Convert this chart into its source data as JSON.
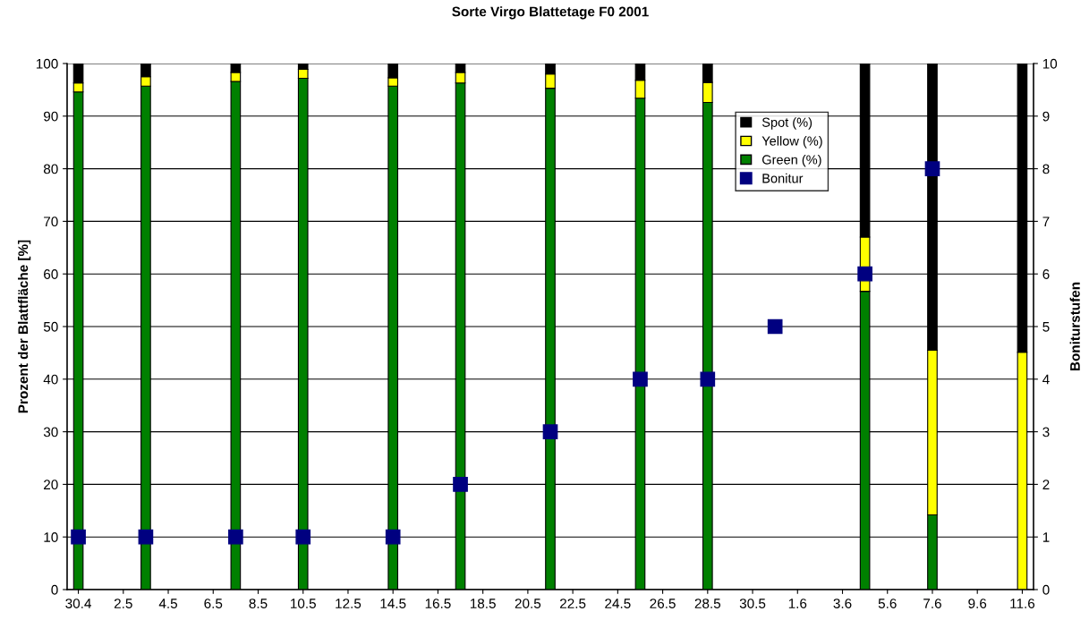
{
  "chart_data": {
    "type": "bar",
    "title": "Sorte Virgo Blattetage F0 2001",
    "ylabel": "Prozent der Blattfläche [%]",
    "y2label": "Boniturstufen",
    "categories": [
      "30.4",
      null,
      "2.5",
      null,
      "4.5",
      null,
      "6.5",
      null,
      "8.5",
      null,
      "10.5",
      null,
      "12.5",
      null,
      "14.5",
      null,
      "16.5",
      null,
      "18.5",
      null,
      "20.5",
      null,
      "22.5",
      null,
      "24.5",
      null,
      "26.5",
      null,
      "28.5",
      null,
      "30.5",
      null,
      "1.6",
      null,
      "3.6",
      null,
      "5.6",
      null,
      "7.6",
      null,
      "9.6",
      null,
      "11.6"
    ],
    "stacked": true,
    "series": [
      {
        "name": "Green (%)",
        "color": "#008000",
        "values": [
          94.6,
          null,
          null,
          95.7,
          null,
          null,
          null,
          96.6,
          null,
          null,
          97.2,
          null,
          null,
          null,
          95.7,
          null,
          null,
          96.3,
          null,
          null,
          null,
          95.3,
          null,
          null,
          null,
          93.4,
          null,
          null,
          92.6,
          null,
          null,
          null,
          null,
          null,
          null,
          56.7,
          null,
          null,
          14.2,
          null,
          null,
          null,
          null
        ]
      },
      {
        "name": "Yellow (%)",
        "color": "#ffff00",
        "values": [
          1.7,
          null,
          null,
          1.8,
          null,
          null,
          null,
          1.7,
          null,
          null,
          1.7,
          null,
          null,
          null,
          1.6,
          null,
          null,
          2.0,
          null,
          null,
          null,
          2.7,
          null,
          null,
          null,
          3.4,
          null,
          null,
          3.8,
          null,
          null,
          null,
          null,
          null,
          null,
          10.3,
          null,
          null,
          31.3,
          null,
          null,
          null,
          45.1
        ]
      },
      {
        "name": "Spot (%)",
        "color": "#000000",
        "values": [
          3.7,
          null,
          null,
          2.5,
          null,
          null,
          null,
          1.7,
          null,
          null,
          1.1,
          null,
          null,
          null,
          2.7,
          null,
          null,
          1.7,
          null,
          null,
          null,
          2.0,
          null,
          null,
          null,
          3.2,
          null,
          null,
          3.6,
          null,
          null,
          null,
          null,
          null,
          null,
          33.0,
          null,
          null,
          54.5,
          null,
          null,
          null,
          54.9
        ]
      },
      {
        "name": "Bonitur",
        "type": "scatter",
        "axis": "y2",
        "marker": "square",
        "color": "#000080",
        "values": [
          1,
          null,
          null,
          1,
          null,
          null,
          null,
          1,
          null,
          null,
          1,
          null,
          null,
          null,
          1,
          null,
          null,
          2,
          null,
          null,
          null,
          3,
          null,
          null,
          null,
          4,
          null,
          null,
          4,
          null,
          null,
          5,
          null,
          null,
          null,
          6,
          null,
          null,
          8,
          null,
          null,
          null,
          null
        ]
      }
    ],
    "ylim": [
      0,
      100
    ],
    "yticks": [
      0,
      10,
      20,
      30,
      40,
      50,
      60,
      70,
      80,
      90,
      100
    ],
    "y2lim": [
      0,
      10
    ],
    "y2ticks": [
      0,
      1,
      2,
      3,
      4,
      5,
      6,
      7,
      8,
      9,
      10
    ],
    "grid": "y",
    "legend": "top right"
  }
}
